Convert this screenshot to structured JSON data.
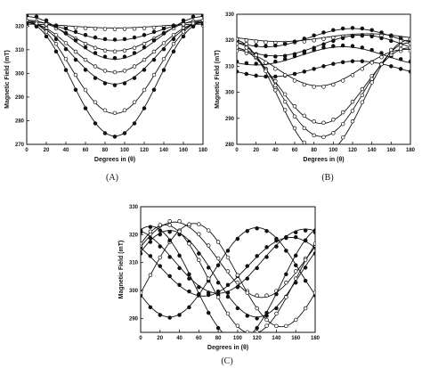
{
  "figure": {
    "panels": [
      "(A)",
      "(B)",
      "(C)"
    ]
  },
  "chart_data": [
    {
      "type": "scatter",
      "panel": "(A)",
      "xlabel": "Degrees in (θ)",
      "ylabel": "Magnetic Field (mT)",
      "xlim": [
        0,
        180
      ],
      "ylim": [
        270,
        325
      ],
      "xticks": [
        0,
        20,
        40,
        60,
        80,
        100,
        120,
        140,
        160,
        180
      ],
      "yticks": [
        270,
        280,
        290,
        300,
        310,
        320
      ],
      "grid": false,
      "series": [
        {
          "marker": "open",
          "fit": {
            "offset": 320.0,
            "amp": 0.8,
            "center": 90,
            "period": 180
          }
        },
        {
          "marker": "filled",
          "fit": {
            "offset": 318.0,
            "amp": 4.0,
            "center": 90,
            "period": 180
          }
        },
        {
          "marker": "open",
          "fit": {
            "offset": 316.0,
            "amp": 6.5,
            "center": 90,
            "period": 180
          }
        },
        {
          "marker": "filled",
          "fit": {
            "offset": 315.0,
            "amp": 9.0,
            "center": 90,
            "period": 180
          }
        },
        {
          "marker": "open",
          "fit": {
            "offset": 311.0,
            "amp": 10.5,
            "center": 90,
            "period": 180
          }
        },
        {
          "marker": "filled",
          "fit": {
            "offset": 308.5,
            "amp": 13.0,
            "center": 90,
            "period": 180
          }
        },
        {
          "marker": "open",
          "fit": {
            "offset": 302.5,
            "amp": 19.5,
            "center": 90,
            "period": 180
          }
        },
        {
          "marker": "filled",
          "fit": {
            "offset": 297.5,
            "amp": 24.0,
            "center": 90,
            "period": 180
          }
        }
      ]
    },
    {
      "type": "scatter",
      "panel": "(B)",
      "xlabel": "Degrees in (θ)",
      "ylabel": "Magnetic Field (mT)",
      "xlim": [
        0,
        180
      ],
      "ylim": [
        280,
        330
      ],
      "xticks": [
        0,
        20,
        40,
        60,
        80,
        100,
        120,
        140,
        160,
        180
      ],
      "yticks": [
        280,
        290,
        300,
        310,
        320,
        330
      ],
      "grid": false,
      "series": [
        {
          "marker": "open",
          "fit": {
            "offset": 321.0,
            "amp": 1.5,
            "center": 45,
            "period": 180
          }
        },
        {
          "marker": "filled",
          "fit": {
            "offset": 321.0,
            "amp": -3.5,
            "center": 120,
            "period": 180
          }
        },
        {
          "marker": "filled",
          "fit": {
            "offset": 318.0,
            "amp": -4.0,
            "center": 130,
            "period": 180
          }
        },
        {
          "marker": "filled",
          "fit": {
            "offset": 314.0,
            "amp": -3.5,
            "center": 110,
            "period": 180
          }
        },
        {
          "marker": "filled",
          "fit": {
            "offset": 309.0,
            "amp": -3.0,
            "center": 125,
            "period": 180
          }
        },
        {
          "marker": "open",
          "fit": {
            "offset": 309.5,
            "amp": 7.0,
            "center": 85,
            "period": 180
          }
        },
        {
          "marker": "open",
          "fit": {
            "offset": 302.5,
            "amp": 14.5,
            "center": 88,
            "period": 180
          }
        },
        {
          "marker": "open",
          "fit": {
            "offset": 301.0,
            "amp": 18.0,
            "center": 88,
            "period": 180
          }
        },
        {
          "marker": "open",
          "fit": {
            "offset": 298.0,
            "amp": 22.0,
            "center": 88,
            "period": 180
          }
        }
      ]
    },
    {
      "type": "scatter",
      "panel": "(C)",
      "xlabel": "Degrees in (θ)",
      "ylabel": "Magnetic Field (mT)",
      "xlim": [
        0,
        180
      ],
      "ylim": [
        285,
        330
      ],
      "xticks": [
        0,
        20,
        40,
        60,
        80,
        100,
        120,
        140,
        160,
        180
      ],
      "yticks": [
        290,
        300,
        310,
        320,
        330
      ],
      "grid": false,
      "series": [
        {
          "marker": "filled",
          "fit": {
            "offset": 310.5,
            "amp": 11.5,
            "center": 80,
            "period": 180
          }
        },
        {
          "marker": "filled",
          "fit": {
            "offset": 308.5,
            "amp": 10.5,
            "center": 65,
            "period": 180
          }
        },
        {
          "marker": "filled",
          "fit": {
            "offset": 306.5,
            "amp": 16.0,
            "center": 30,
            "period": 180
          }
        },
        {
          "marker": "open",
          "fit": {
            "offset": 311.0,
            "amp": 13.5,
            "center": 125,
            "period": 180
          }
        },
        {
          "marker": "open",
          "fit": {
            "offset": 305.5,
            "amp": 18.5,
            "center": 145,
            "period": 180
          }
        },
        {
          "marker": "filled",
          "fit": {
            "offset": 306.0,
            "amp": 15.5,
            "center": 120,
            "period": 180
          }
        },
        {
          "marker": "open",
          "fit": {
            "offset": 304.0,
            "amp": 19.5,
            "center": 115,
            "period": 180
          }
        },
        {
          "marker": "filled",
          "fit": {
            "offset": 302.5,
            "amp": 20.5,
            "center": 100,
            "period": 180
          }
        }
      ]
    }
  ]
}
